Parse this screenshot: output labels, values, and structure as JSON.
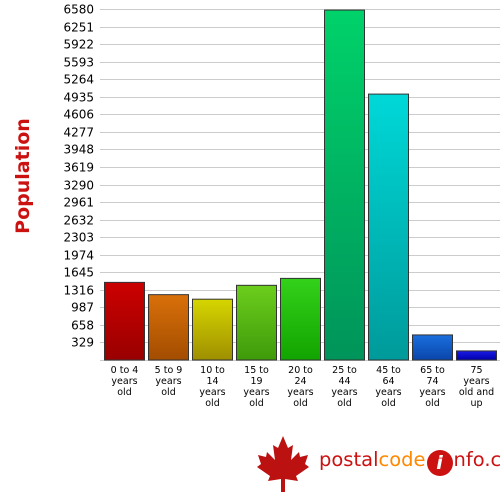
{
  "chart_data": {
    "type": "bar",
    "title": "",
    "ylabel": "Population",
    "xlabel": "",
    "ylim": [
      0,
      6580
    ],
    "yticks": [
      329,
      658,
      987,
      1316,
      1645,
      1974,
      2303,
      2632,
      2961,
      3290,
      3619,
      3948,
      4277,
      4606,
      4935,
      5264,
      5593,
      5922,
      6251,
      6580
    ],
    "grid": true,
    "categories": [
      [
        "0 to 4",
        "years",
        "old"
      ],
      [
        "5 to 9",
        "years",
        "old"
      ],
      [
        "10 to",
        "14",
        "years",
        "old"
      ],
      [
        "15 to",
        "19",
        "years",
        "old"
      ],
      [
        "20 to",
        "24",
        "years",
        "old"
      ],
      [
        "25 to",
        "44",
        "years",
        "old"
      ],
      [
        "45 to",
        "64",
        "years",
        "old"
      ],
      [
        "65 to",
        "74",
        "years",
        "old"
      ],
      [
        "75",
        "years",
        "old and",
        "up"
      ]
    ],
    "values": [
      1455,
      1225,
      1140,
      1400,
      1530,
      6560,
      4985,
      470,
      170
    ],
    "colors": [
      [
        "#cc0000",
        "#990000"
      ],
      [
        "#d9700a",
        "#a34d00"
      ],
      [
        "#d6d600",
        "#9e8f00"
      ],
      [
        "#6cce1c",
        "#3f9a0a"
      ],
      [
        "#33d11a",
        "#12a400"
      ],
      [
        "#00d26a",
        "#00945a"
      ],
      [
        "#00d8d8",
        "#009a9a"
      ],
      [
        "#1a6fdd",
        "#0a45aa"
      ],
      [
        "#1a1ae6",
        "#0000aa"
      ]
    ]
  },
  "branding": {
    "part1": "postal",
    "part2": "code",
    "part3": "i",
    "part4": "nfo.ca",
    "logo_icon": "maple-leaf-icon",
    "leaf_color": "#bb1111"
  }
}
